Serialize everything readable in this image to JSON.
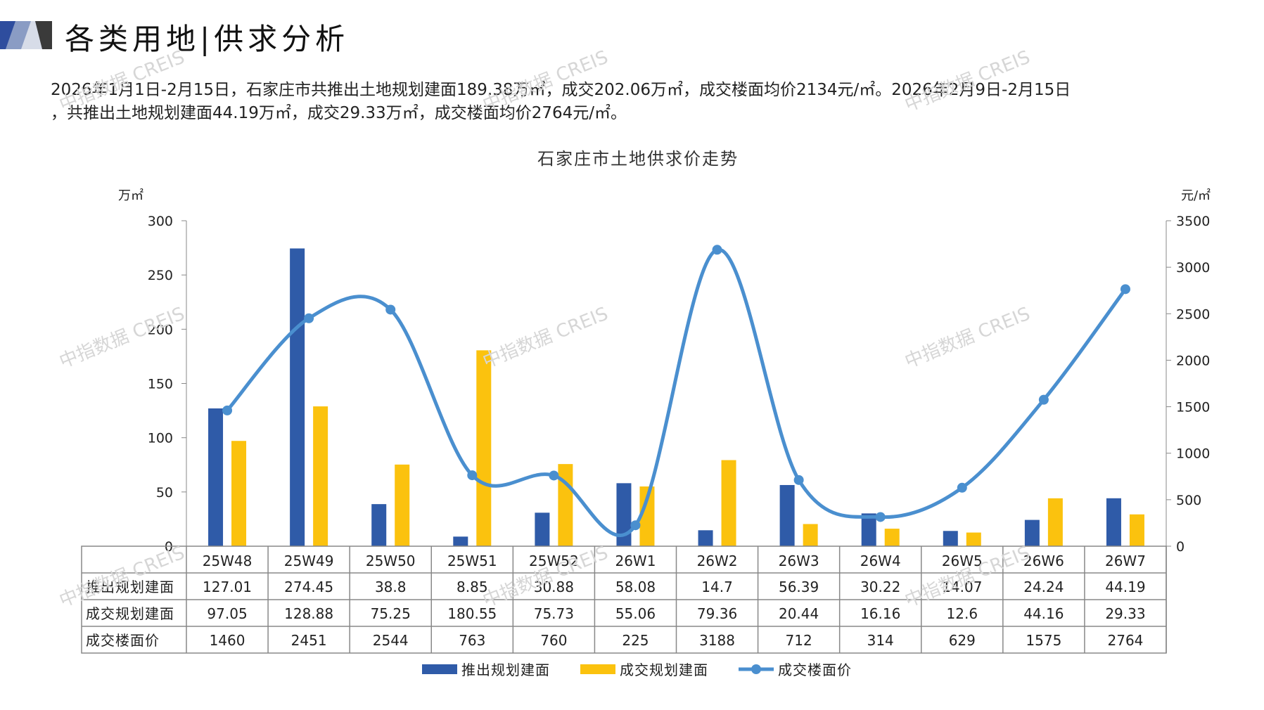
{
  "header": {
    "title": "各类用地|供求分析",
    "summary_line1": "2026年1月1日-2月15日，石家庄市共推出土地规划建面189.38万㎡，成交202.06万㎡，成交楼面均价2134元/㎡。2026年2月9日-2月15日",
    "summary_line2": "，共推出土地规划建面44.19万㎡，成交29.33万㎡，成交楼面均价2764元/㎡。"
  },
  "watermark_text": "中指数据 CREIS",
  "colors": {
    "accent_navy": "#2e4d9e",
    "bar_blue": "#2f5ba8",
    "bar_yellow": "#fbc20e",
    "line_blue": "#4a8fcf"
  },
  "chart_data": {
    "type": "bar",
    "title": "石家庄市土地供求价走势",
    "ylabel_left": "万㎡",
    "ylabel_right": "元/㎡",
    "ylim_left": [
      0,
      300
    ],
    "yticks_left": [
      "0",
      "50",
      "100",
      "150",
      "200",
      "250",
      "300"
    ],
    "ylim_right": [
      0,
      3500
    ],
    "yticks_right": [
      "0",
      "500",
      "1000",
      "1500",
      "2000",
      "2500",
      "3000",
      "3500"
    ],
    "categories": [
      "25W48",
      "25W49",
      "25W50",
      "25W51",
      "25W52",
      "26W1",
      "26W2",
      "26W3",
      "26W4",
      "26W5",
      "26W6",
      "26W7"
    ],
    "series": [
      {
        "name": "推出规划建面",
        "type": "bar",
        "axis": "left",
        "color": "#2f5ba8",
        "values": [
          127.01,
          274.45,
          38.8,
          8.85,
          30.88,
          58.08,
          14.7,
          56.39,
          30.22,
          14.07,
          24.24,
          44.19
        ],
        "labels": [
          "127.01",
          "274.45",
          "38.8",
          "8.85",
          "30.88",
          "58.08",
          "14.7",
          "56.39",
          "30.22",
          "14.07",
          "24.24",
          "44.19"
        ]
      },
      {
        "name": "成交规划建面",
        "type": "bar",
        "axis": "left",
        "color": "#fbc20e",
        "values": [
          97.05,
          128.88,
          75.25,
          180.55,
          75.73,
          55.06,
          79.36,
          20.44,
          16.16,
          12.6,
          44.16,
          29.33
        ],
        "labels": [
          "97.05",
          "128.88",
          "75.25",
          "180.55",
          "75.73",
          "55.06",
          "79.36",
          "20.44",
          "16.16",
          "12.6",
          "44.16",
          "29.33"
        ]
      },
      {
        "name": "成交楼面价",
        "type": "line",
        "axis": "right",
        "color": "#4a8fcf",
        "values": [
          1460,
          2451,
          2544,
          763,
          760,
          225,
          3188,
          712,
          314,
          629,
          1575,
          2764
        ],
        "labels": [
          "1460",
          "2451",
          "2544",
          "763",
          "760",
          "225",
          "3188",
          "712",
          "314",
          "629",
          "1575",
          "2764"
        ]
      }
    ],
    "legend_placement": "bottom",
    "data_table": true
  }
}
